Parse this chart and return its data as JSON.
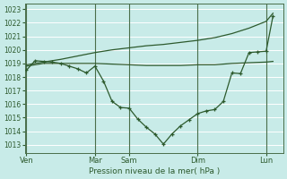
{
  "bg_color": "#c8ebe8",
  "grid_color": "#b8dbd8",
  "line_color": "#2d5a2d",
  "xlabel": "Pression niveau de la mer( hPa )",
  "yticks": [
    1013,
    1014,
    1015,
    1016,
    1017,
    1018,
    1019,
    1020,
    1021,
    1022,
    1023
  ],
  "xtick_labels": [
    "Ven",
    "Mar",
    "Sam",
    "Dim",
    "Lun"
  ],
  "xtick_pos": [
    0,
    2,
    3,
    5,
    7
  ],
  "vline_pos": [
    0,
    2,
    3,
    5,
    7
  ],
  "xlim": [
    -0.05,
    7.5
  ],
  "ylim": [
    1012.4,
    1023.4
  ],
  "series_jagged_x": [
    0.0,
    0.25,
    0.5,
    0.75,
    1.0,
    1.25,
    1.5,
    1.75,
    2.0,
    2.25,
    2.5,
    2.75,
    3.0,
    3.25,
    3.5,
    3.75,
    4.0,
    4.25,
    4.5,
    4.75,
    5.0,
    5.25,
    5.5,
    5.75,
    6.0,
    6.25,
    6.5,
    6.75,
    7.0,
    7.2
  ],
  "series_jagged_y": [
    1018.5,
    1019.2,
    1019.15,
    1019.1,
    1019.0,
    1018.8,
    1018.6,
    1018.3,
    1018.8,
    1017.7,
    1016.2,
    1015.75,
    1015.7,
    1014.9,
    1014.3,
    1013.8,
    1013.05,
    1013.8,
    1014.4,
    1014.85,
    1015.3,
    1015.5,
    1015.6,
    1016.2,
    1018.3,
    1018.25,
    1019.8,
    1019.85,
    1019.9,
    1022.5
  ],
  "series_flat_x": [
    0.0,
    0.5,
    1.0,
    1.5,
    2.0,
    2.5,
    3.0,
    3.5,
    4.0,
    4.5,
    5.0,
    5.5,
    6.0,
    6.5,
    7.0,
    7.2
  ],
  "series_flat_y": [
    1018.8,
    1019.0,
    1019.0,
    1019.0,
    1019.0,
    1018.95,
    1018.9,
    1018.85,
    1018.85,
    1018.85,
    1018.9,
    1018.9,
    1019.0,
    1019.05,
    1019.1,
    1019.15
  ],
  "series_rise_x": [
    0.0,
    0.5,
    1.0,
    1.5,
    2.0,
    2.5,
    3.0,
    3.5,
    4.0,
    4.5,
    5.0,
    5.5,
    6.0,
    6.5,
    7.0,
    7.2
  ],
  "series_rise_y": [
    1018.9,
    1019.1,
    1019.3,
    1019.55,
    1019.8,
    1020.0,
    1020.15,
    1020.3,
    1020.4,
    1020.55,
    1020.7,
    1020.9,
    1021.2,
    1021.6,
    1022.1,
    1022.7
  ]
}
